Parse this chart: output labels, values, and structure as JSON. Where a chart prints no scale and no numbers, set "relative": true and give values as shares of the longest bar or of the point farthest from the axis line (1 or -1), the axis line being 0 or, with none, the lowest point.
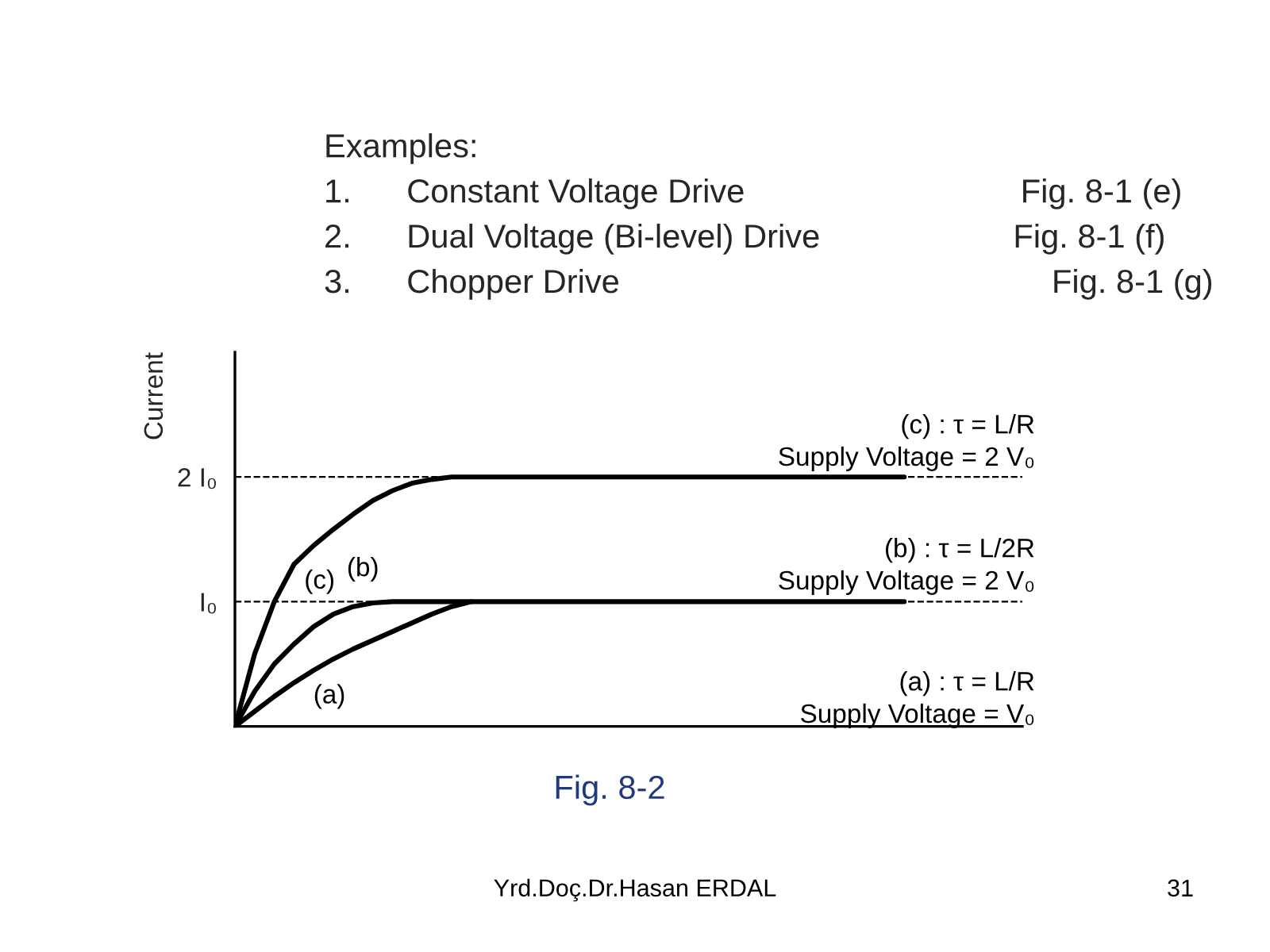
{
  "chart_data": {
    "type": "line",
    "title": "Examples:\n1.      Constant Voltage Drive                              Fig. 8-1 (e)\n2.      Dual Voltage (Bi-level) Drive                     Fig. 8-1 (f)\n3.      Chopper Drive                                               Fig. 8-1 (g)",
    "ylabel": "Current",
    "relative": true,
    "categories": [
      null,
      null,
      null,
      null,
      null,
      null,
      null,
      null,
      null,
      null,
      null,
      null,
      null,
      null,
      null,
      null,
      null,
      null,
      null,
      null,
      null,
      null,
      null,
      null,
      null,
      null,
      null,
      null,
      null,
      null,
      null,
      null,
      null,
      null,
      null,
      null,
      null,
      null,
      null,
      null,
      null
    ],
    "series": [
      {
        "name": "(c)",
        "color": "#000000",
        "values": [
          0,
          0.29,
          0.5,
          0.65,
          0.725,
          0.79,
          0.85,
          0.905,
          0.945,
          0.975,
          0.99,
          1.0,
          1.0,
          1.0,
          1.0,
          1.0,
          1.0,
          1.0,
          1.0,
          1.0,
          1.0,
          1.0,
          1.0,
          1.0,
          1.0,
          1.0,
          1.0,
          1.0,
          1.0,
          1.0,
          1.0,
          1.0,
          1.0,
          1.0,
          1.0,
          null,
          null,
          null,
          null,
          null,
          null
        ]
      },
      {
        "name": "(b)",
        "color": "#000000",
        "values": [
          0,
          0.14,
          0.25,
          0.33,
          0.4,
          0.45,
          0.48,
          0.495,
          0.5,
          0.5,
          0.5,
          0.5,
          0.5,
          0.5,
          0.5,
          0.5,
          0.5,
          0.5,
          0.5,
          0.5,
          0.5,
          0.5,
          0.5,
          0.5,
          0.5,
          0.5,
          0.5,
          0.5,
          0.5,
          0.5,
          0.5,
          0.5,
          0.5,
          0.5,
          0.5,
          null,
          null,
          null,
          null,
          null,
          null
        ]
      },
      {
        "name": "(a)",
        "color": "#000000",
        "values": [
          0,
          0.06,
          0.12,
          0.175,
          0.225,
          0.27,
          0.31,
          0.345,
          0.38,
          0.415,
          0.45,
          0.48,
          0.5,
          null,
          null,
          null,
          null,
          null,
          null,
          null,
          null,
          null,
          null,
          null,
          null,
          null,
          null,
          null,
          null,
          null,
          null,
          null,
          null,
          null,
          null,
          null,
          null,
          null,
          null,
          null,
          null
        ]
      }
    ],
    "ref_lines": [
      {
        "axis": "y",
        "value": 0.5,
        "label": "I₀",
        "line_style": "dashed",
        "color": "#000000"
      },
      {
        "axis": "y",
        "value": 1.0,
        "label": "2 I₀",
        "line_style": "dashed",
        "color": "#000000"
      }
    ],
    "annotations": [
      "(c) : τ = L/R\nSupply Voltage = 2 V₀",
      "(b) : τ = L/2R\nSupply Voltage = 2 V₀",
      "(a) : τ = L/R\nSupply Voltage = V₀",
      "Fig. 8-2",
      "Yrd.Doç.Dr.Hasan ERDAL",
      "31"
    ],
    "grid": false,
    "legend": false,
    "marker": "none",
    "line_style": "solid"
  }
}
